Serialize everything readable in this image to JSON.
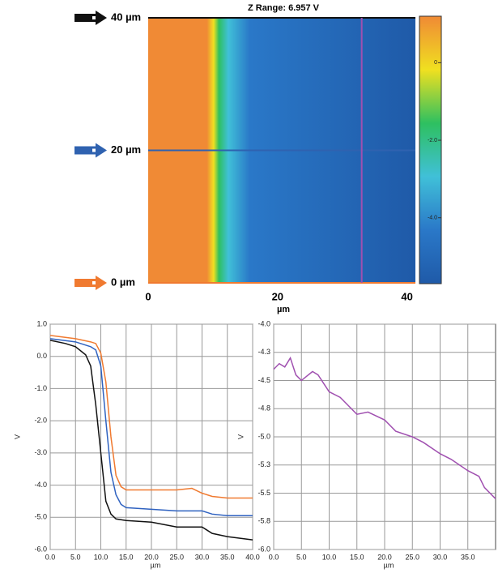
{
  "chart_data": [
    {
      "type": "image",
      "title": "Z Range:  6.957 V",
      "xlabel": "µm",
      "xlim": [
        0,
        41.3
      ],
      "ylim": [
        0,
        40
      ],
      "xticks": [
        0,
        20,
        40
      ],
      "colormap": [
        "#f08a35",
        "#f0e020",
        "#2ec060",
        "#40c0d8",
        "#2a78c8",
        "#1f5aa8"
      ],
      "markers": [
        {
          "label": "40 µm",
          "value": 40,
          "color": "#111111"
        },
        {
          "label": "20 µm",
          "value": 20,
          "color": "#2f62b0"
        },
        {
          "label": "0 µm",
          "value": 0,
          "color": "#f07a30"
        }
      ],
      "vcursor": {
        "value": 33,
        "color": "#a050b0"
      },
      "colorbar": {
        "clim": [
          -5.7,
          1.2
        ],
        "ticks": [
          {
            "value": 0,
            "label": "0"
          },
          {
            "value": -2,
            "label": "-2.0"
          },
          {
            "value": -4,
            "label": "-4.0"
          }
        ]
      }
    },
    {
      "type": "line",
      "xlabel": "µm",
      "ylabel": "V",
      "xlim": [
        0,
        40
      ],
      "ylim": [
        -6,
        1
      ],
      "grid": true,
      "xticks": [
        {
          "value": 0,
          "label": "0.0"
        },
        {
          "value": 5,
          "label": "5.0"
        },
        {
          "value": 10,
          "label": "10.0"
        },
        {
          "value": 15,
          "label": "15.0"
        },
        {
          "value": 20,
          "label": "20.0"
        },
        {
          "value": 25,
          "label": "25.0"
        },
        {
          "value": 30,
          "label": "30.0"
        },
        {
          "value": 35,
          "label": "35.0"
        },
        {
          "value": 40,
          "label": "40.0"
        }
      ],
      "yticks": [
        {
          "value": -6,
          "label": "-6.0"
        },
        {
          "value": -5,
          "label": "-5.0"
        },
        {
          "value": -4,
          "label": "-4.0"
        },
        {
          "value": -3,
          "label": "-3.0"
        },
        {
          "value": -2,
          "label": "-2.0"
        },
        {
          "value": -1,
          "label": "-1.0"
        },
        {
          "value": 0,
          "label": "0.0"
        },
        {
          "value": 1,
          "label": "1.0"
        }
      ],
      "series": [
        {
          "color": "#f07a30",
          "x": [
            0,
            5,
            8,
            9,
            10,
            11,
            12,
            13,
            14,
            15,
            20,
            25,
            28,
            30,
            32,
            35,
            40
          ],
          "values": [
            0.65,
            0.55,
            0.45,
            0.4,
            0.1,
            -0.8,
            -2.5,
            -3.7,
            -4.05,
            -4.15,
            -4.15,
            -4.15,
            -4.1,
            -4.25,
            -4.35,
            -4.4,
            -4.4
          ]
        },
        {
          "color": "#2f62c0",
          "x": [
            0,
            5,
            8,
            9,
            10,
            11,
            12,
            13,
            14,
            15,
            20,
            25,
            30,
            32,
            35,
            40
          ],
          "values": [
            0.55,
            0.45,
            0.3,
            0.2,
            -0.3,
            -2.0,
            -3.6,
            -4.3,
            -4.6,
            -4.7,
            -4.75,
            -4.8,
            -4.8,
            -4.9,
            -4.95,
            -4.95
          ]
        },
        {
          "color": "#111111",
          "x": [
            0,
            3,
            5,
            7,
            8,
            9,
            10,
            11,
            12,
            13,
            15,
            20,
            25,
            30,
            32,
            35,
            40
          ],
          "values": [
            0.5,
            0.4,
            0.3,
            0.05,
            -0.3,
            -1.5,
            -3.0,
            -4.5,
            -4.9,
            -5.05,
            -5.1,
            -5.15,
            -5.3,
            -5.3,
            -5.5,
            -5.6,
            -5.7
          ]
        }
      ]
    },
    {
      "type": "line",
      "xlabel": "µm",
      "ylabel": "V",
      "xlim": [
        0,
        40
      ],
      "ylim": [
        -6,
        -4
      ],
      "grid": true,
      "xticks": [
        {
          "value": 0,
          "label": "0.0"
        },
        {
          "value": 5,
          "label": "5.0"
        },
        {
          "value": 10,
          "label": "10.0"
        },
        {
          "value": 15,
          "label": "15.0"
        },
        {
          "value": 20,
          "label": "20.0"
        },
        {
          "value": 25,
          "label": "25.0"
        },
        {
          "value": 30,
          "label": "30.0"
        },
        {
          "value": 35,
          "label": "35.0"
        }
      ],
      "yticks": [
        {
          "value": -6,
          "label": "-6.0"
        },
        {
          "value": -5.75,
          "label": "-5.8"
        },
        {
          "value": -5.5,
          "label": "-5.5"
        },
        {
          "value": -5.25,
          "label": "-5.3"
        },
        {
          "value": -5,
          "label": "-5.0"
        },
        {
          "value": -4.75,
          "label": "-4.8"
        },
        {
          "value": -4.5,
          "label": "-4.5"
        },
        {
          "value": -4.25,
          "label": "-4.3"
        },
        {
          "value": -4,
          "label": "-4.0"
        }
      ],
      "series": [
        {
          "color": "#a050b0",
          "x": [
            0,
            1,
            2,
            3,
            4,
            5,
            7,
            8,
            10,
            12,
            15,
            17,
            20,
            22,
            25,
            27,
            30,
            32,
            35,
            37,
            38,
            40
          ],
          "values": [
            -4.4,
            -4.35,
            -4.38,
            -4.3,
            -4.45,
            -4.5,
            -4.42,
            -4.45,
            -4.6,
            -4.65,
            -4.8,
            -4.78,
            -4.85,
            -4.95,
            -5.0,
            -5.05,
            -5.15,
            -5.2,
            -5.3,
            -5.35,
            -5.45,
            -5.55
          ]
        }
      ]
    }
  ]
}
